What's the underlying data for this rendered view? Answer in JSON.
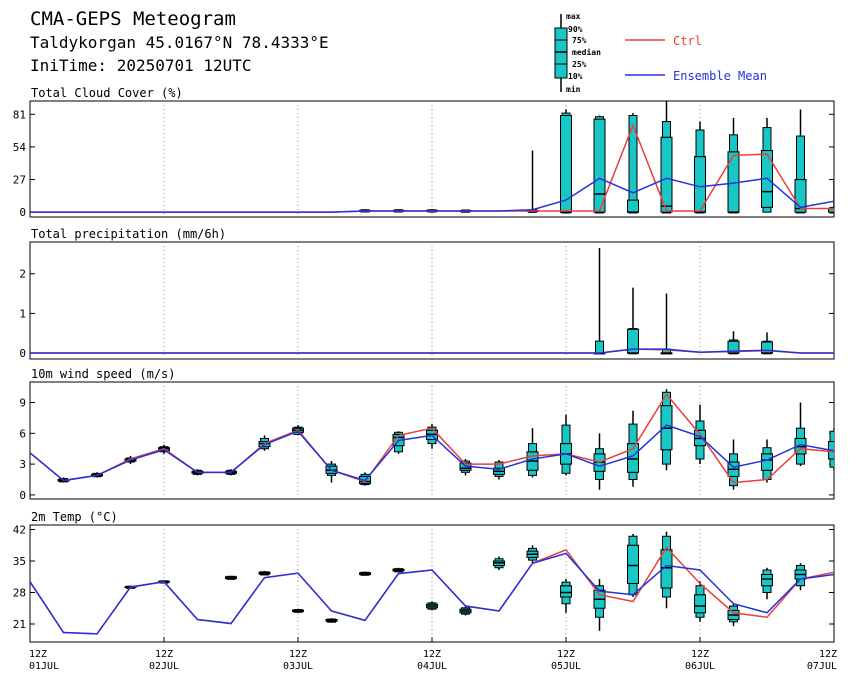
{
  "header": {
    "title": "CMA-GEPS Meteogram",
    "location": "Taldykorgan 45.0167°N 78.4333°E",
    "init_time": "IniTime: 20250701 12UTC"
  },
  "legend": {
    "box_labels": [
      "max",
      "90%",
      "75%",
      "median",
      "25%",
      "10%",
      "min"
    ],
    "ctrl_label": "Ctrl",
    "mean_label": "Ensemble Mean",
    "colors": {
      "ctrl": "#e8403c",
      "mean": "#2233dd",
      "box": "#19c6c6"
    }
  },
  "x_axis": {
    "ticks": [
      {
        "top": "12Z",
        "bottom": "01JUL"
      },
      {
        "top": "12Z",
        "bottom": "02JUL"
      },
      {
        "top": "12Z",
        "bottom": "03JUL"
      },
      {
        "top": "12Z",
        "bottom": "04JUL"
      },
      {
        "top": "12Z",
        "bottom": "05JUL"
      },
      {
        "top": "12Z",
        "bottom": "06JUL"
      },
      {
        "top": "12Z",
        "bottom": "07JUL"
      }
    ]
  },
  "chart_data": [
    {
      "type": "box",
      "title": "Total Cloud Cover (%)",
      "x_hours": [
        0,
        6,
        12,
        18,
        24,
        30,
        36,
        42,
        48,
        54,
        60,
        66,
        72,
        78,
        84,
        90,
        96,
        102,
        108,
        114,
        120,
        126,
        132,
        138,
        144
      ],
      "ylim": [
        -4,
        92
      ],
      "yticks": [
        0,
        27,
        54,
        81
      ],
      "ctrl": [
        0,
        0,
        0,
        0,
        0,
        0,
        0,
        0,
        0,
        0,
        1,
        1,
        1,
        1,
        1,
        1,
        1,
        1,
        72,
        1,
        1,
        47,
        48,
        3,
        3
      ],
      "mean": [
        0,
        0,
        0,
        0,
        0,
        0,
        0,
        0,
        0,
        0,
        1,
        1,
        1,
        1,
        1,
        2,
        10,
        28,
        16,
        28,
        21,
        24,
        28,
        4,
        9
      ],
      "boxes": [
        {
          "h": 60,
          "min": 0,
          "p10": 0.5,
          "p25": 0.8,
          "med": 1,
          "p75": 1.5,
          "p90": 2,
          "max": 2.5
        },
        {
          "h": 66,
          "min": 0,
          "p10": 0.5,
          "p25": 0.8,
          "med": 1,
          "p75": 1.5,
          "p90": 2,
          "max": 2.5
        },
        {
          "h": 72,
          "min": 0,
          "p10": 0.5,
          "p25": 0.8,
          "med": 1,
          "p75": 1.5,
          "p90": 2,
          "max": 2.5
        },
        {
          "h": 78,
          "min": 0,
          "p10": 0.3,
          "p25": 0.6,
          "med": 1,
          "p75": 1.2,
          "p90": 1.8,
          "max": 2
        },
        {
          "h": 90,
          "min": 0,
          "p10": 0,
          "p25": 0.5,
          "med": 1,
          "p75": 1.5,
          "p90": 2,
          "max": 51
        },
        {
          "h": 96,
          "min": 0,
          "p10": 0,
          "p25": 0,
          "med": 0,
          "p75": 80,
          "p90": 82,
          "max": 85
        },
        {
          "h": 102,
          "min": 0,
          "p10": 0,
          "p25": 0,
          "med": 15,
          "p75": 77,
          "p90": 79,
          "max": 80
        },
        {
          "h": 108,
          "min": 0,
          "p10": 0,
          "p25": 0,
          "med": 0,
          "p75": 10,
          "p90": 80,
          "max": 82
        },
        {
          "h": 114,
          "min": 0,
          "p10": 0,
          "p25": 0,
          "med": 5,
          "p75": 62,
          "p90": 75,
          "max": 92
        },
        {
          "h": 120,
          "min": 0,
          "p10": 0,
          "p25": 0,
          "med": 0,
          "p75": 46,
          "p90": 68,
          "max": 75
        },
        {
          "h": 126,
          "min": 0,
          "p10": 0,
          "p25": 0,
          "med": 0,
          "p75": 50,
          "p90": 64,
          "max": 78
        },
        {
          "h": 132,
          "min": 0,
          "p10": 0,
          "p25": 4,
          "med": 17,
          "p75": 51,
          "p90": 70,
          "max": 78
        },
        {
          "h": 138,
          "min": 0,
          "p10": 0,
          "p25": 0,
          "med": 3,
          "p75": 27,
          "p90": 63,
          "max": 85
        },
        {
          "h": 144,
          "min": 0,
          "p10": 0,
          "p25": 0,
          "med": 3,
          "p75": 3,
          "p90": 4,
          "max": 28
        },
        {
          "h": 150,
          "min": 0,
          "p10": 0,
          "p25": 0,
          "med": 3,
          "p75": 22,
          "p90": 25,
          "max": 27
        }
      ]
    },
    {
      "type": "box",
      "title": "Total precipitation (mm/6h)",
      "x_hours": [
        0,
        6,
        12,
        18,
        24,
        30,
        36,
        42,
        48,
        54,
        60,
        66,
        72,
        78,
        84,
        90,
        96,
        102,
        108,
        114,
        120,
        126,
        132,
        138,
        144
      ],
      "ylim": [
        -0.15,
        2.8
      ],
      "yticks": [
        0,
        1,
        2
      ],
      "ctrl": [
        0,
        0,
        0,
        0,
        0,
        0,
        0,
        0,
        0,
        0,
        0,
        0,
        0,
        0,
        0,
        0,
        0,
        0,
        0.1,
        0.08,
        0.02,
        0.04,
        0.06,
        0,
        0
      ],
      "mean": [
        0,
        0,
        0,
        0,
        0,
        0,
        0,
        0,
        0,
        0,
        0,
        0,
        0,
        0,
        0,
        0,
        0,
        0,
        0.1,
        0.1,
        0.02,
        0.05,
        0.07,
        0,
        0
      ],
      "boxes": [
        {
          "h": 102,
          "min": 0,
          "p10": 0,
          "p25": 0,
          "med": 0,
          "p75": 0,
          "p90": 0.3,
          "max": 2.65
        },
        {
          "h": 108,
          "min": 0,
          "p10": 0,
          "p25": 0,
          "med": 0,
          "p75": 0.6,
          "p90": 0.62,
          "max": 1.65
        },
        {
          "h": 114,
          "min": 0,
          "p10": 0,
          "p25": 0,
          "med": 0,
          "p75": 0,
          "p90": 0.1,
          "max": 1.5
        },
        {
          "h": 126,
          "min": 0,
          "p10": 0,
          "p25": 0,
          "med": 0,
          "p75": 0.3,
          "p90": 0.33,
          "max": 0.55
        },
        {
          "h": 132,
          "min": 0,
          "p10": 0,
          "p25": 0,
          "med": 0,
          "p75": 0.28,
          "p90": 0.3,
          "max": 0.52
        }
      ]
    },
    {
      "type": "box",
      "title": "10m wind speed (m/s)",
      "x_hours": [
        0,
        6,
        12,
        18,
        24,
        30,
        36,
        42,
        48,
        54,
        60,
        66,
        72,
        78,
        84,
        90,
        96,
        102,
        108,
        114,
        120,
        126,
        132,
        138,
        144
      ],
      "ylim": [
        -0.4,
        11
      ],
      "yticks": [
        0,
        3,
        6,
        9
      ],
      "ctrl": [
        4.1,
        1.4,
        1.9,
        3.5,
        4.5,
        2.2,
        2.2,
        5.0,
        6.3,
        2.4,
        1.3,
        5.8,
        6.5,
        3.0,
        3.0,
        3.8,
        4.0,
        3.2,
        4.5,
        9.8,
        5.9,
        1.2,
        1.5,
        4.5,
        4.2
      ],
      "mean": [
        4.1,
        1.4,
        1.9,
        3.4,
        4.4,
        2.2,
        2.2,
        4.9,
        6.2,
        2.4,
        1.4,
        5.3,
        5.8,
        2.8,
        2.5,
        3.5,
        4.0,
        2.8,
        3.8,
        6.8,
        5.7,
        2.7,
        3.4,
        4.9,
        4.3
      ],
      "boxes": [
        {
          "h": 6,
          "min": 1.2,
          "p10": 1.3,
          "p25": 1.35,
          "med": 1.4,
          "p75": 1.5,
          "p90": 1.6,
          "max": 1.7
        },
        {
          "h": 12,
          "min": 1.7,
          "p10": 1.8,
          "p25": 1.85,
          "med": 1.9,
          "p75": 2.0,
          "p90": 2.1,
          "max": 2.2
        },
        {
          "h": 18,
          "min": 3.0,
          "p10": 3.2,
          "p25": 3.3,
          "med": 3.4,
          "p75": 3.5,
          "p90": 3.6,
          "max": 3.8
        },
        {
          "h": 24,
          "min": 4.0,
          "p10": 4.2,
          "p25": 4.3,
          "med": 4.5,
          "p75": 4.6,
          "p90": 4.7,
          "max": 4.9
        },
        {
          "h": 30,
          "min": 1.9,
          "p10": 2.0,
          "p25": 2.1,
          "med": 2.2,
          "p75": 2.3,
          "p90": 2.4,
          "max": 2.5
        },
        {
          "h": 36,
          "min": 1.9,
          "p10": 2.0,
          "p25": 2.1,
          "med": 2.2,
          "p75": 2.3,
          "p90": 2.4,
          "max": 2.5
        },
        {
          "h": 42,
          "min": 4.3,
          "p10": 4.5,
          "p25": 4.7,
          "med": 5.0,
          "p75": 5.2,
          "p90": 5.5,
          "max": 5.8
        },
        {
          "h": 48,
          "min": 5.8,
          "p10": 5.9,
          "p25": 6.1,
          "med": 6.3,
          "p75": 6.5,
          "p90": 6.6,
          "max": 6.8
        },
        {
          "h": 54,
          "min": 1.2,
          "p10": 1.9,
          "p25": 2.1,
          "med": 2.4,
          "p75": 2.8,
          "p90": 3.0,
          "max": 3.3
        },
        {
          "h": 60,
          "min": 0.9,
          "p10": 1.0,
          "p25": 1.1,
          "med": 1.3,
          "p75": 1.8,
          "p90": 2.0,
          "max": 2.2
        },
        {
          "h": 66,
          "min": 4.0,
          "p10": 4.2,
          "p25": 4.8,
          "med": 5.6,
          "p75": 5.9,
          "p90": 6.1,
          "max": 6.2
        },
        {
          "h": 72,
          "min": 4.5,
          "p10": 5.0,
          "p25": 5.4,
          "med": 5.9,
          "p75": 6.3,
          "p90": 6.6,
          "max": 6.9
        },
        {
          "h": 78,
          "min": 1.9,
          "p10": 2.2,
          "p25": 2.4,
          "med": 2.6,
          "p75": 3.1,
          "p90": 3.3,
          "max": 3.5
        },
        {
          "h": 84,
          "min": 1.5,
          "p10": 1.8,
          "p25": 2.0,
          "med": 2.3,
          "p75": 2.6,
          "p90": 3.2,
          "max": 3.4
        },
        {
          "h": 90,
          "min": 1.7,
          "p10": 1.9,
          "p25": 2.4,
          "med": 3.3,
          "p75": 4.2,
          "p90": 5.0,
          "max": 6.5
        },
        {
          "h": 96,
          "min": 1.9,
          "p10": 2.1,
          "p25": 3.0,
          "med": 4.0,
          "p75": 5.0,
          "p90": 6.8,
          "max": 7.8
        },
        {
          "h": 102,
          "min": 0.5,
          "p10": 1.5,
          "p25": 2.3,
          "med": 3.2,
          "p75": 4.0,
          "p90": 4.5,
          "max": 6.0
        },
        {
          "h": 108,
          "min": 0.8,
          "p10": 1.5,
          "p25": 2.2,
          "med": 3.5,
          "p75": 5.0,
          "p90": 6.9,
          "max": 8.2
        },
        {
          "h": 114,
          "min": 2.4,
          "p10": 3.0,
          "p25": 4.4,
          "med": 6.5,
          "p75": 8.7,
          "p90": 10.0,
          "max": 10.3
        },
        {
          "h": 120,
          "min": 3.0,
          "p10": 3.5,
          "p25": 4.8,
          "med": 5.5,
          "p75": 6.3,
          "p90": 7.2,
          "max": 8.8
        },
        {
          "h": 126,
          "min": 0.5,
          "p10": 0.9,
          "p25": 1.8,
          "med": 2.5,
          "p75": 3.2,
          "p90": 4.0,
          "max": 5.4
        },
        {
          "h": 132,
          "min": 1.2,
          "p10": 1.5,
          "p25": 2.4,
          "med": 3.4,
          "p75": 4.0,
          "p90": 4.6,
          "max": 5.4
        },
        {
          "h": 138,
          "min": 2.8,
          "p10": 3.0,
          "p25": 4.0,
          "med": 4.7,
          "p75": 5.5,
          "p90": 6.5,
          "max": 9.0
        },
        {
          "h": 144,
          "min": 2.4,
          "p10": 2.7,
          "p25": 3.5,
          "med": 4.3,
          "p75": 5.2,
          "p90": 6.2,
          "max": 6.5
        }
      ]
    },
    {
      "type": "box",
      "title": "2m Temp (°C)",
      "x_hours": [
        0,
        6,
        12,
        18,
        24,
        30,
        36,
        42,
        48,
        54,
        60,
        66,
        72,
        78,
        84,
        90,
        96,
        102,
        108,
        114,
        120,
        126,
        132,
        138,
        144
      ],
      "ylim": [
        17,
        43
      ],
      "yticks": [
        21,
        28,
        35,
        42
      ],
      "ctrl": [
        30.4,
        19.1,
        18.8,
        29.2,
        30.4,
        22.0,
        21.1,
        31.3,
        32.3,
        23.9,
        21.8,
        32.2,
        33.0,
        25.0,
        23.9,
        34.5,
        37.5,
        27.5,
        26.0,
        38.0,
        30.0,
        23.5,
        22.5,
        31.0,
        32.5
      ],
      "mean": [
        30.4,
        19.1,
        18.8,
        29.2,
        30.4,
        22.0,
        21.1,
        31.3,
        32.3,
        23.9,
        21.8,
        32.2,
        33.0,
        25.0,
        23.9,
        34.5,
        36.7,
        28.3,
        27.5,
        34.0,
        33.0,
        25.5,
        23.5,
        31.0,
        32.0
      ],
      "boxes": [
        {
          "h": 18,
          "min": 28.9,
          "p10": 29.0,
          "p25": 29.1,
          "med": 29.2,
          "p75": 29.3,
          "p90": 29.4,
          "max": 29.5
        },
        {
          "h": 24,
          "min": 30.0,
          "p10": 30.1,
          "p25": 30.3,
          "med": 30.4,
          "p75": 30.5,
          "p90": 30.6,
          "max": 30.7
        },
        {
          "h": 36,
          "min": 30.9,
          "p10": 31.0,
          "p25": 31.1,
          "med": 31.3,
          "p75": 31.5,
          "p90": 31.6,
          "max": 31.7
        },
        {
          "h": 42,
          "min": 31.8,
          "p10": 31.9,
          "p25": 32.1,
          "med": 32.3,
          "p75": 32.5,
          "p90": 32.6,
          "max": 32.8
        },
        {
          "h": 48,
          "min": 23.5,
          "p10": 23.6,
          "p25": 23.8,
          "med": 23.9,
          "p75": 24.1,
          "p90": 24.2,
          "max": 24.4
        },
        {
          "h": 54,
          "min": 21.3,
          "p10": 21.4,
          "p25": 21.6,
          "med": 21.8,
          "p75": 22.0,
          "p90": 22.1,
          "max": 22.3
        },
        {
          "h": 60,
          "min": 31.8,
          "p10": 31.9,
          "p25": 32.0,
          "med": 32.2,
          "p75": 32.4,
          "p90": 32.5,
          "max": 32.6
        },
        {
          "h": 66,
          "min": 32.5,
          "p10": 32.6,
          "p25": 32.8,
          "med": 33.0,
          "p75": 33.2,
          "p90": 33.3,
          "max": 33.5
        },
        {
          "h": 72,
          "min": 24.0,
          "p10": 24.3,
          "p25": 24.6,
          "med": 25.0,
          "p75": 25.4,
          "p90": 25.7,
          "max": 26.0
        },
        {
          "h": 78,
          "min": 22.9,
          "p10": 23.2,
          "p25": 23.5,
          "med": 23.9,
          "p75": 24.3,
          "p90": 24.6,
          "max": 24.9
        },
        {
          "h": 84,
          "min": 33.0,
          "p10": 33.5,
          "p25": 34.0,
          "med": 34.6,
          "p75": 35.0,
          "p90": 35.5,
          "max": 36.0
        },
        {
          "h": 90,
          "min": 34.5,
          "p10": 35.2,
          "p25": 35.8,
          "med": 36.5,
          "p75": 37.2,
          "p90": 37.8,
          "max": 38.5
        },
        {
          "h": 96,
          "min": 23.5,
          "p10": 25.5,
          "p25": 27.0,
          "med": 28.0,
          "p75": 29.5,
          "p90": 30.3,
          "max": 31.0
        },
        {
          "h": 102,
          "min": 19.5,
          "p10": 22.5,
          "p25": 24.5,
          "med": 26.5,
          "p75": 28.5,
          "p90": 29.5,
          "max": 31.0
        },
        {
          "h": 108,
          "min": 27.0,
          "p10": 27.5,
          "p25": 30.0,
          "med": 34.0,
          "p75": 38.5,
          "p90": 40.5,
          "max": 41.0
        },
        {
          "h": 114,
          "min": 24.5,
          "p10": 27.0,
          "p25": 29.0,
          "med": 33.5,
          "p75": 37.5,
          "p90": 40.5,
          "max": 41.5
        },
        {
          "h": 120,
          "min": 21.5,
          "p10": 22.5,
          "p25": 23.5,
          "med": 25.0,
          "p75": 27.5,
          "p90": 29.5,
          "max": 30.5
        },
        {
          "h": 126,
          "min": 20.5,
          "p10": 21.5,
          "p25": 22.0,
          "med": 23.0,
          "p75": 24.0,
          "p90": 25.0,
          "max": 25.5
        },
        {
          "h": 132,
          "min": 26.5,
          "p10": 28.0,
          "p25": 29.5,
          "med": 31.0,
          "p75": 32.0,
          "p90": 33.0,
          "max": 33.5
        },
        {
          "h": 138,
          "min": 28.5,
          "p10": 29.5,
          "p25": 31.0,
          "med": 32.0,
          "p75": 33.0,
          "p90": 34.0,
          "max": 34.5
        }
      ]
    }
  ]
}
